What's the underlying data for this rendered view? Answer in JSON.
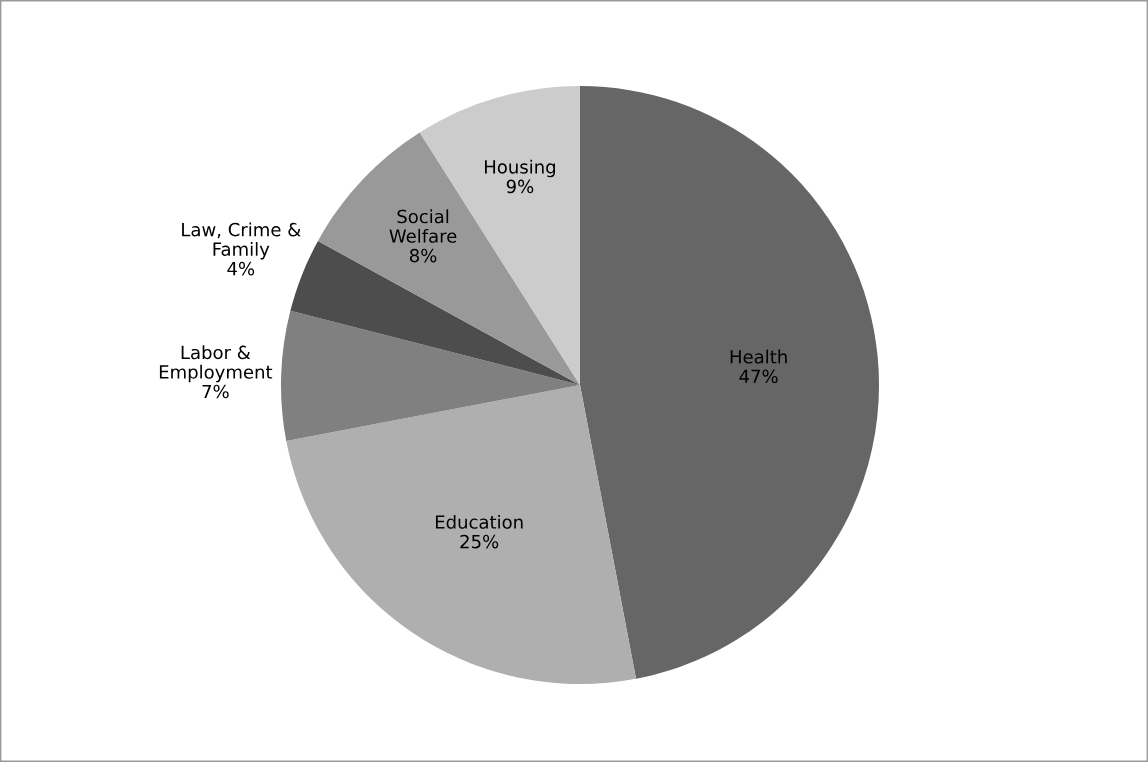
{
  "chart_data": {
    "type": "pie",
    "categories": [
      "Health",
      "Education",
      "Labor &\nEmployment",
      "Law, Crime &\nFamily",
      "Social\nWelfare",
      "Housing"
    ],
    "values": [
      47,
      25,
      7,
      4,
      8,
      9
    ],
    "colors": [
      "#666666",
      "#afafaf",
      "#808080",
      "#4d4d4d",
      "#999999",
      "#cccccc"
    ],
    "value_labels": [
      "47%",
      "25%",
      "7%",
      "4%",
      "8%",
      "9%"
    ],
    "legend": false
  }
}
